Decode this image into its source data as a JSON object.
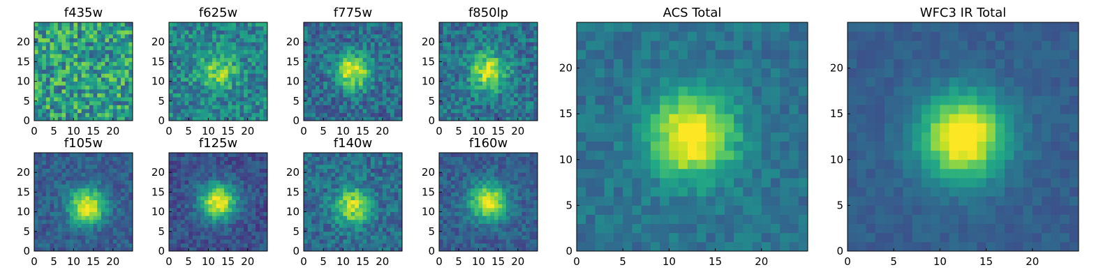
{
  "figure": {
    "description": "Grid of 2D image cutouts of a galaxy in multiple HST filters plus stacked totals"
  },
  "chart_data": [
    {
      "type": "heatmap",
      "title": "f435w",
      "xlim": [
        0,
        25
      ],
      "ylim": [
        0,
        25
      ],
      "xticks": [
        0,
        5,
        10,
        15,
        20
      ],
      "yticks": [
        0,
        5,
        10,
        15,
        20
      ],
      "colormap": "viridis",
      "center": [
        12,
        12
      ],
      "peak_strength": 0.02,
      "noise": 0.55,
      "background": 0.55,
      "seed": 11
    },
    {
      "type": "heatmap",
      "title": "f625w",
      "xlim": [
        0,
        25
      ],
      "ylim": [
        0,
        25
      ],
      "xticks": [
        0,
        5,
        10,
        15,
        20
      ],
      "yticks": [
        0,
        5,
        10,
        15,
        20
      ],
      "colormap": "viridis",
      "center": [
        12,
        12
      ],
      "peak_strength": 0.35,
      "noise": 0.38,
      "background": 0.45,
      "seed": 22
    },
    {
      "type": "heatmap",
      "title": "f775w",
      "xlim": [
        0,
        25
      ],
      "ylim": [
        0,
        25
      ],
      "xticks": [
        0,
        5,
        10,
        15,
        20
      ],
      "yticks": [
        0,
        5,
        10,
        15,
        20
      ],
      "colormap": "viridis",
      "center": [
        12,
        12
      ],
      "peak_strength": 0.6,
      "noise": 0.35,
      "background": 0.35,
      "seed": 33
    },
    {
      "type": "heatmap",
      "title": "f850lp",
      "xlim": [
        0,
        25
      ],
      "ylim": [
        0,
        25
      ],
      "xticks": [
        0,
        5,
        10,
        15,
        20
      ],
      "yticks": [
        0,
        5,
        10,
        15,
        20
      ],
      "colormap": "viridis",
      "center": [
        12,
        12
      ],
      "peak_strength": 0.55,
      "noise": 0.35,
      "background": 0.38,
      "seed": 44
    },
    {
      "type": "heatmap",
      "title": "f105w",
      "xlim": [
        0,
        25
      ],
      "ylim": [
        0,
        25
      ],
      "xticks": [
        0,
        5,
        10,
        15,
        20
      ],
      "yticks": [
        0,
        5,
        10,
        15,
        20
      ],
      "colormap": "viridis",
      "center": [
        13,
        11
      ],
      "peak_strength": 0.7,
      "noise": 0.22,
      "background": 0.3,
      "seed": 55
    },
    {
      "type": "heatmap",
      "title": "f125w",
      "xlim": [
        0,
        25
      ],
      "ylim": [
        0,
        25
      ],
      "xticks": [
        0,
        5,
        10,
        15,
        20
      ],
      "yticks": [
        0,
        5,
        10,
        15,
        20
      ],
      "colormap": "viridis",
      "center": [
        12,
        12
      ],
      "peak_strength": 0.75,
      "noise": 0.22,
      "background": 0.25,
      "seed": 66
    },
    {
      "type": "heatmap",
      "title": "f140w",
      "xlim": [
        0,
        25
      ],
      "ylim": [
        0,
        25
      ],
      "xticks": [
        0,
        5,
        10,
        15,
        20
      ],
      "yticks": [
        0,
        5,
        10,
        15,
        20
      ],
      "colormap": "viridis",
      "center": [
        12,
        11
      ],
      "peak_strength": 0.55,
      "noise": 0.3,
      "background": 0.35,
      "seed": 77
    },
    {
      "type": "heatmap",
      "title": "f160w",
      "xlim": [
        0,
        25
      ],
      "ylim": [
        0,
        25
      ],
      "xticks": [
        0,
        5,
        10,
        15,
        20
      ],
      "yticks": [
        0,
        5,
        10,
        15,
        20
      ],
      "colormap": "viridis",
      "center": [
        12,
        12
      ],
      "peak_strength": 0.7,
      "noise": 0.22,
      "background": 0.3,
      "seed": 88
    },
    {
      "type": "heatmap",
      "title": "ACS Total",
      "xlim": [
        0,
        25
      ],
      "ylim": [
        0,
        25
      ],
      "xticks": [
        0,
        5,
        10,
        15,
        20
      ],
      "yticks": [
        0,
        5,
        10,
        15,
        20
      ],
      "colormap": "viridis",
      "center": [
        12,
        12
      ],
      "peak_strength": 0.7,
      "noise": 0.18,
      "background": 0.38,
      "seed": 99
    },
    {
      "type": "heatmap",
      "title": "WFC3 IR Total",
      "xlim": [
        0,
        25
      ],
      "ylim": [
        0,
        25
      ],
      "xticks": [
        0,
        5,
        10,
        15,
        20
      ],
      "yticks": [
        0,
        5,
        10,
        15,
        20
      ],
      "colormap": "viridis",
      "center": [
        12,
        12
      ],
      "peak_strength": 0.8,
      "noise": 0.1,
      "background": 0.3,
      "seed": 123
    }
  ]
}
